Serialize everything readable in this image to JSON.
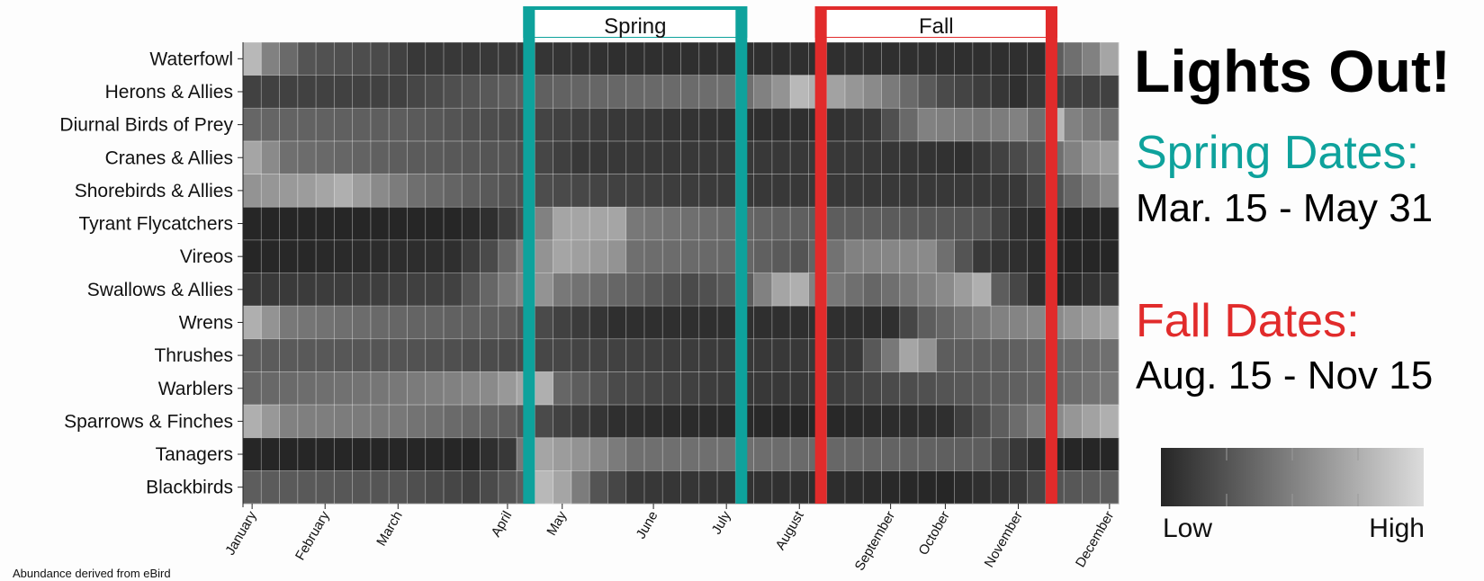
{
  "title": "Lights Out!",
  "spring": {
    "heading": "Spring Dates:",
    "range": "Mar. 15 - May 31",
    "label": "Spring",
    "start_week": 16,
    "end_week": 27,
    "color": "#0ea29c"
  },
  "fall": {
    "heading": "Fall Dates:",
    "range": "Aug. 15 - Nov 15",
    "label": "Fall",
    "start_week": 32,
    "end_week": 44,
    "color": "#e12b2b"
  },
  "legend": {
    "low": "Low",
    "high": "High",
    "dark_color": "#262626",
    "light_color": "#dcdcdc"
  },
  "caption": "Abundance derived from eBird",
  "chart_data": {
    "type": "heatmap",
    "x_unit": "week",
    "n_weeks": 48,
    "value_range": [
      0,
      1
    ],
    "months": [
      {
        "label": "January",
        "week": 0
      },
      {
        "label": "February",
        "week": 4
      },
      {
        "label": "March",
        "week": 8
      },
      {
        "label": "April",
        "week": 14
      },
      {
        "label": "May",
        "week": 17
      },
      {
        "label": "June",
        "week": 22
      },
      {
        "label": "July",
        "week": 26
      },
      {
        "label": "August",
        "week": 30
      },
      {
        "label": "September",
        "week": 35
      },
      {
        "label": "October",
        "week": 38
      },
      {
        "label": "November",
        "week": 42
      },
      {
        "label": "December",
        "week": 47
      }
    ],
    "rows": [
      {
        "name": "Waterfowl",
        "anchors": [
          [
            0,
            0.8
          ],
          [
            1,
            0.5
          ],
          [
            3,
            0.25
          ],
          [
            7,
            0.2
          ],
          [
            9,
            0.1
          ],
          [
            14,
            0.1
          ],
          [
            20,
            0.05
          ],
          [
            30,
            0.05
          ],
          [
            38,
            0.05
          ],
          [
            43,
            0.05
          ],
          [
            44,
            0.3
          ],
          [
            46,
            0.5
          ],
          [
            47,
            0.7
          ]
        ]
      },
      {
        "name": "Herons & Allies",
        "anchors": [
          [
            0,
            0.15
          ],
          [
            8,
            0.15
          ],
          [
            14,
            0.3
          ],
          [
            19,
            0.35
          ],
          [
            27,
            0.4
          ],
          [
            29,
            0.6
          ],
          [
            30,
            0.8
          ],
          [
            31,
            0.75
          ],
          [
            34,
            0.55
          ],
          [
            38,
            0.2
          ],
          [
            42,
            0.05
          ],
          [
            44,
            0.15
          ],
          [
            47,
            0.15
          ]
        ]
      },
      {
        "name": "Diurnal Birds of Prey",
        "anchors": [
          [
            0,
            0.35
          ],
          [
            8,
            0.3
          ],
          [
            14,
            0.2
          ],
          [
            20,
            0.1
          ],
          [
            27,
            0.05
          ],
          [
            31,
            0.05
          ],
          [
            34,
            0.1
          ],
          [
            37,
            0.5
          ],
          [
            40,
            0.45
          ],
          [
            42,
            0.5
          ],
          [
            43,
            0.4
          ],
          [
            44,
            0.8
          ],
          [
            45,
            0.5
          ],
          [
            47,
            0.4
          ]
        ]
      },
      {
        "name": "Cranes & Allies",
        "anchors": [
          [
            0,
            0.7
          ],
          [
            2,
            0.4
          ],
          [
            8,
            0.3
          ],
          [
            14,
            0.25
          ],
          [
            18,
            0.1
          ],
          [
            27,
            0.1
          ],
          [
            34,
            0.1
          ],
          [
            39,
            0.05
          ],
          [
            42,
            0.2
          ],
          [
            43,
            0.25
          ],
          [
            44,
            0.4
          ],
          [
            46,
            0.6
          ],
          [
            47,
            0.65
          ]
        ]
      },
      {
        "name": "Shorebirds & Allies",
        "anchors": [
          [
            0,
            0.6
          ],
          [
            3,
            0.65
          ],
          [
            5,
            0.75
          ],
          [
            7,
            0.55
          ],
          [
            9,
            0.4
          ],
          [
            14,
            0.25
          ],
          [
            20,
            0.15
          ],
          [
            27,
            0.1
          ],
          [
            34,
            0.1
          ],
          [
            42,
            0.1
          ],
          [
            44,
            0.25
          ],
          [
            47,
            0.55
          ]
        ]
      },
      {
        "name": "Tyrant Flycatchers",
        "anchors": [
          [
            0,
            0.0
          ],
          [
            11,
            0.0
          ],
          [
            13,
            0.05
          ],
          [
            15,
            0.2
          ],
          [
            16,
            0.5
          ],
          [
            17,
            0.7
          ],
          [
            20,
            0.7
          ],
          [
            21,
            0.45
          ],
          [
            27,
            0.35
          ],
          [
            31,
            0.3
          ],
          [
            34,
            0.3
          ],
          [
            40,
            0.25
          ],
          [
            42,
            0.05
          ],
          [
            44,
            0.0
          ],
          [
            47,
            0.0
          ]
        ]
      },
      {
        "name": "Vireos",
        "anchors": [
          [
            0,
            0.0
          ],
          [
            11,
            0.05
          ],
          [
            13,
            0.2
          ],
          [
            15,
            0.5
          ],
          [
            17,
            0.7
          ],
          [
            20,
            0.6
          ],
          [
            21,
            0.4
          ],
          [
            27,
            0.35
          ],
          [
            30,
            0.25
          ],
          [
            33,
            0.5
          ],
          [
            37,
            0.55
          ],
          [
            40,
            0.1
          ],
          [
            42,
            0.05
          ],
          [
            44,
            0.0
          ],
          [
            47,
            0.0
          ]
        ]
      },
      {
        "name": "Swallows & Allies",
        "anchors": [
          [
            0,
            0.1
          ],
          [
            11,
            0.15
          ],
          [
            14,
            0.45
          ],
          [
            16,
            0.6
          ],
          [
            17,
            0.45
          ],
          [
            20,
            0.35
          ],
          [
            24,
            0.2
          ],
          [
            27,
            0.3
          ],
          [
            29,
            0.7
          ],
          [
            30,
            0.75
          ],
          [
            31,
            0.5
          ],
          [
            34,
            0.35
          ],
          [
            38,
            0.55
          ],
          [
            40,
            0.75
          ],
          [
            41,
            0.3
          ],
          [
            43,
            0.05
          ],
          [
            44,
            0.0
          ],
          [
            47,
            0.1
          ]
        ]
      },
      {
        "name": "Wrens",
        "anchors": [
          [
            0,
            0.75
          ],
          [
            2,
            0.45
          ],
          [
            8,
            0.35
          ],
          [
            14,
            0.3
          ],
          [
            17,
            0.15
          ],
          [
            20,
            0.05
          ],
          [
            31,
            0.05
          ],
          [
            35,
            0.05
          ],
          [
            37,
            0.3
          ],
          [
            41,
            0.5
          ],
          [
            44,
            0.55
          ],
          [
            47,
            0.7
          ]
        ]
      },
      {
        "name": "Thrushes",
        "anchors": [
          [
            0,
            0.3
          ],
          [
            8,
            0.25
          ],
          [
            14,
            0.2
          ],
          [
            20,
            0.15
          ],
          [
            27,
            0.1
          ],
          [
            33,
            0.1
          ],
          [
            35,
            0.45
          ],
          [
            36,
            0.7
          ],
          [
            37,
            0.6
          ],
          [
            38,
            0.3
          ],
          [
            41,
            0.3
          ],
          [
            44,
            0.35
          ],
          [
            47,
            0.4
          ]
        ]
      },
      {
        "name": "Warblers",
        "anchors": [
          [
            0,
            0.35
          ],
          [
            8,
            0.45
          ],
          [
            11,
            0.5
          ],
          [
            13,
            0.55
          ],
          [
            15,
            0.7
          ],
          [
            16,
            0.75
          ],
          [
            17,
            0.35
          ],
          [
            20,
            0.2
          ],
          [
            27,
            0.1
          ],
          [
            31,
            0.1
          ],
          [
            35,
            0.2
          ],
          [
            41,
            0.3
          ],
          [
            44,
            0.35
          ],
          [
            47,
            0.45
          ]
        ]
      },
      {
        "name": "Sparrows & Finches",
        "anchors": [
          [
            0,
            0.75
          ],
          [
            2,
            0.5
          ],
          [
            8,
            0.45
          ],
          [
            14,
            0.3
          ],
          [
            17,
            0.15
          ],
          [
            20,
            0.05
          ],
          [
            30,
            0.0
          ],
          [
            38,
            0.05
          ],
          [
            41,
            0.3
          ],
          [
            44,
            0.55
          ],
          [
            47,
            0.75
          ]
        ]
      },
      {
        "name": "Tanagers",
        "anchors": [
          [
            0,
            0.0
          ],
          [
            12,
            0.0
          ],
          [
            14,
            0.1
          ],
          [
            15,
            0.45
          ],
          [
            16,
            0.7
          ],
          [
            18,
            0.6
          ],
          [
            21,
            0.4
          ],
          [
            27,
            0.4
          ],
          [
            33,
            0.35
          ],
          [
            40,
            0.3
          ],
          [
            42,
            0.1
          ],
          [
            44,
            0.0
          ],
          [
            47,
            0.0
          ]
        ]
      },
      {
        "name": "Blackbirds",
        "anchors": [
          [
            0,
            0.3
          ],
          [
            8,
            0.25
          ],
          [
            12,
            0.15
          ],
          [
            15,
            0.3
          ],
          [
            16,
            0.8
          ],
          [
            17,
            0.7
          ],
          [
            19,
            0.25
          ],
          [
            21,
            0.1
          ],
          [
            30,
            0.05
          ],
          [
            38,
            0.0
          ],
          [
            42,
            0.1
          ],
          [
            44,
            0.25
          ],
          [
            47,
            0.3
          ]
        ]
      }
    ]
  }
}
